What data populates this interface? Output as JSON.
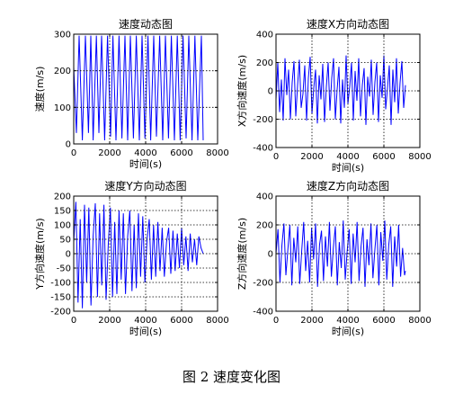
{
  "caption": "图 2  速度变化图",
  "style": {
    "line_color": "#0000ff",
    "axis_color": "#000000",
    "grid_color": "#000000"
  },
  "chart_data": [
    {
      "id": "speed",
      "type": "line",
      "title": "速度动态图",
      "xlabel": "时间(s)",
      "ylabel": "速度(m/s)",
      "xlim": [
        0,
        8000
      ],
      "ylim": [
        0,
        300
      ],
      "xticks": [
        "0",
        "2000",
        "4000",
        "6000",
        "8000"
      ],
      "yticks": [
        "0",
        "100",
        "200",
        "300"
      ],
      "grid": "dotted",
      "x_end": 7200,
      "series": [
        {
          "x": [
            0,
            150,
            300,
            480,
            650,
            820,
            950,
            1080,
            1260,
            1400,
            1550,
            1720,
            1880,
            2050,
            2180,
            2350,
            2520,
            2680,
            2850,
            3000,
            3150,
            3320,
            3480,
            3650,
            3800,
            3960,
            4130,
            4280,
            4450,
            4600,
            4780,
            4950,
            5100,
            5270,
            5430,
            5600,
            5760,
            5920,
            6080,
            6250,
            6400,
            6580,
            6740,
            6900,
            7100,
            7200
          ],
          "y": [
            210,
            30,
            296,
            10,
            296,
            30,
            296,
            10,
            296,
            30,
            296,
            10,
            296,
            20,
            296,
            10,
            296,
            15,
            296,
            10,
            296,
            15,
            296,
            10,
            296,
            15,
            296,
            10,
            296,
            20,
            296,
            10,
            296,
            15,
            296,
            10,
            296,
            10,
            296,
            15,
            296,
            10,
            296,
            10,
            296,
            10
          ]
        }
      ]
    },
    {
      "id": "vx",
      "type": "line",
      "title": "速度X方向动态图",
      "xlabel": "时间(s)",
      "ylabel": "X方向速度(m/s)",
      "xlim": [
        0,
        8000
      ],
      "ylim": [
        -400,
        400
      ],
      "xticks": [
        "0",
        "2000",
        "4000",
        "6000",
        "8000"
      ],
      "yticks": [
        "-400",
        "-200",
        "0",
        "200",
        "400"
      ],
      "grid": "dotted",
      "x_end": 7200,
      "series": [
        {
          "x": [
            0,
            100,
            200,
            300,
            400,
            500,
            600,
            700,
            800,
            900,
            1000,
            1100,
            1200,
            1300,
            1400,
            1500,
            1600,
            1700,
            1800,
            1900,
            2000,
            2100,
            2200,
            2300,
            2400,
            2500,
            2600,
            2700,
            2800,
            2900,
            3000,
            3100,
            3200,
            3300,
            3400,
            3500,
            3600,
            3700,
            3800,
            3900,
            4000,
            4100,
            4200,
            4300,
            4400,
            4500,
            4600,
            4700,
            4800,
            4900,
            5000,
            5100,
            5200,
            5300,
            5400,
            5500,
            5600,
            5700,
            5800,
            5900,
            6000,
            6100,
            6200,
            6300,
            6400,
            6500,
            6600,
            6700,
            6800,
            6900,
            7000,
            7100,
            7200
          ],
          "y": [
            -60,
            200,
            -150,
            80,
            -210,
            230,
            -30,
            150,
            -200,
            60,
            210,
            -180,
            40,
            220,
            -120,
            -20,
            180,
            -210,
            90,
            240,
            -160,
            20,
            150,
            -230,
            110,
            -60,
            190,
            -220,
            30,
            200,
            -140,
            90,
            230,
            -200,
            10,
            170,
            -230,
            80,
            -120,
            250,
            -90,
            30,
            200,
            -210,
            140,
            -70,
            230,
            -180,
            40,
            160,
            -240,
            100,
            -40,
            220,
            -170,
            60,
            200,
            -220,
            110,
            -50,
            250,
            -130,
            20,
            180,
            -240,
            150,
            -80,
            230,
            -160,
            60,
            210,
            -120,
            40
          ]
        }
      ]
    },
    {
      "id": "vy",
      "type": "line",
      "title": "速度Y方向动态图",
      "xlabel": "时间(s)",
      "ylabel": "Y方向速度(m/s)",
      "xlim": [
        0,
        8000
      ],
      "ylim": [
        -200,
        200
      ],
      "xticks": [
        "0",
        "2000",
        "4000",
        "6000",
        "8000"
      ],
      "yticks": [
        "-200",
        "-150",
        "-100",
        "-50",
        "0",
        "50",
        "100",
        "150",
        "200"
      ],
      "grid": "dotted",
      "x_end": 7200,
      "series": [
        {
          "x": [
            0,
            120,
            240,
            360,
            480,
            600,
            720,
            840,
            960,
            1080,
            1200,
            1320,
            1440,
            1560,
            1680,
            1800,
            1920,
            2040,
            2160,
            2280,
            2400,
            2520,
            2640,
            2760,
            2880,
            3000,
            3120,
            3240,
            3360,
            3480,
            3600,
            3720,
            3840,
            3960,
            4080,
            4200,
            4320,
            4440,
            4560,
            4680,
            4800,
            4920,
            5040,
            5160,
            5280,
            5400,
            5520,
            5640,
            5760,
            5880,
            6000,
            6120,
            6240,
            6360,
            6480,
            6600,
            6720,
            6840,
            6960,
            7080,
            7200
          ],
          "y": [
            40,
            180,
            -170,
            120,
            -190,
            170,
            -100,
            160,
            -180,
            60,
            175,
            -150,
            140,
            -110,
            170,
            -160,
            30,
            160,
            -150,
            110,
            -140,
            150,
            -90,
            140,
            -140,
            60,
            150,
            -130,
            100,
            -120,
            140,
            -80,
            130,
            -100,
            50,
            120,
            -90,
            100,
            -80,
            110,
            -60,
            90,
            -80,
            40,
            90,
            -70,
            80,
            -60,
            70,
            -50,
            90,
            -40,
            60,
            -60,
            70,
            -30,
            50,
            -40,
            60,
            20,
            0
          ]
        }
      ]
    },
    {
      "id": "vz",
      "type": "line",
      "title": "速度Z方向动态图",
      "xlabel": "时间(s)",
      "ylabel": "Z方向速度(m/s)",
      "xlim": [
        0,
        8000
      ],
      "ylim": [
        -400,
        400
      ],
      "xticks": [
        "0",
        "2000",
        "4000",
        "6000",
        "8000"
      ],
      "yticks": [
        "-400",
        "-200",
        "0",
        "200",
        "400"
      ],
      "grid": "dotted",
      "x_end": 7200,
      "series": [
        {
          "x": [
            0,
            110,
            220,
            330,
            440,
            550,
            660,
            770,
            880,
            990,
            1100,
            1210,
            1320,
            1430,
            1540,
            1650,
            1760,
            1870,
            1980,
            2090,
            2200,
            2310,
            2420,
            2530,
            2640,
            2750,
            2860,
            2970,
            3080,
            3190,
            3300,
            3410,
            3520,
            3630,
            3740,
            3850,
            3960,
            4070,
            4180,
            4290,
            4400,
            4510,
            4620,
            4730,
            4840,
            4950,
            5060,
            5170,
            5280,
            5390,
            5500,
            5610,
            5720,
            5830,
            5940,
            6050,
            6160,
            6270,
            6380,
            6490,
            6600,
            6710,
            6820,
            6930,
            7040,
            7150,
            7200
          ],
          "y": [
            0,
            170,
            -200,
            60,
            210,
            -150,
            30,
            200,
            -220,
            110,
            -60,
            190,
            -210,
            20,
            220,
            -120,
            90,
            -200,
            180,
            -40,
            210,
            -230,
            60,
            160,
            -190,
            120,
            -90,
            220,
            -160,
            40,
            190,
            -220,
            80,
            -100,
            230,
            -180,
            20,
            170,
            -210,
            140,
            -60,
            220,
            -190,
            50,
            180,
            -230,
            100,
            -80,
            210,
            -170,
            30,
            200,
            -220,
            150,
            -50,
            230,
            -180,
            60,
            190,
            -230,
            120,
            -90,
            200,
            -160,
            40,
            -150,
            -120
          ]
        }
      ]
    }
  ]
}
